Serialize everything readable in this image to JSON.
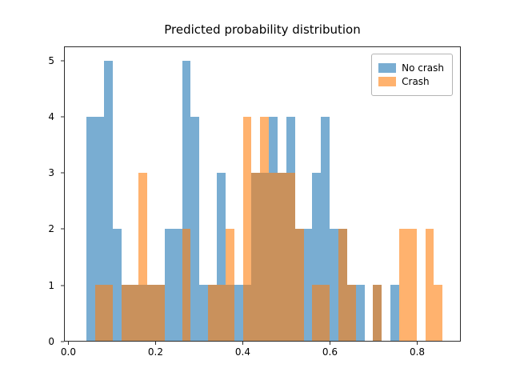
{
  "chart_data": {
    "type": "bar",
    "subtype": "histogram",
    "title": "Predicted probability distribution",
    "xlabel": "",
    "ylabel": "",
    "bin_width": 0.02,
    "xlim": [
      -0.01,
      0.9
    ],
    "ylim": [
      0,
      5.25
    ],
    "grid": false,
    "legend_position": "upper right",
    "x_ticks": [
      {
        "value": 0.0,
        "label": "0.0"
      },
      {
        "value": 0.2,
        "label": "0.2"
      },
      {
        "value": 0.4,
        "label": "0.4"
      },
      {
        "value": 0.6,
        "label": "0.6"
      },
      {
        "value": 0.8,
        "label": "0.8"
      }
    ],
    "y_ticks": [
      {
        "value": 0,
        "label": "0"
      },
      {
        "value": 1,
        "label": "1"
      },
      {
        "value": 2,
        "label": "2"
      },
      {
        "value": 3,
        "label": "3"
      },
      {
        "value": 4,
        "label": "4"
      },
      {
        "value": 5,
        "label": "5"
      }
    ],
    "series": [
      {
        "name": "No crash",
        "color": "#1f77b4",
        "opacity": 0.6,
        "bins": [
          [
            0.04,
            4
          ],
          [
            0.06,
            4
          ],
          [
            0.08,
            5
          ],
          [
            0.1,
            2
          ],
          [
            0.12,
            1
          ],
          [
            0.14,
            1
          ],
          [
            0.16,
            1
          ],
          [
            0.18,
            1
          ],
          [
            0.2,
            1
          ],
          [
            0.22,
            2
          ],
          [
            0.24,
            2
          ],
          [
            0.26,
            5
          ],
          [
            0.28,
            4
          ],
          [
            0.3,
            1
          ],
          [
            0.32,
            1
          ],
          [
            0.34,
            3
          ],
          [
            0.36,
            1
          ],
          [
            0.38,
            1
          ],
          [
            0.4,
            1
          ],
          [
            0.42,
            3
          ],
          [
            0.44,
            3
          ],
          [
            0.46,
            4
          ],
          [
            0.48,
            3
          ],
          [
            0.5,
            4
          ],
          [
            0.52,
            2
          ],
          [
            0.54,
            2
          ],
          [
            0.56,
            3
          ],
          [
            0.58,
            4
          ],
          [
            0.6,
            2
          ],
          [
            0.62,
            2
          ],
          [
            0.64,
            1
          ],
          [
            0.66,
            1
          ],
          [
            0.7,
            1
          ],
          [
            0.74,
            1
          ]
        ]
      },
      {
        "name": "Crash",
        "color": "#ff7f0e",
        "opacity": 0.6,
        "bins": [
          [
            0.06,
            1
          ],
          [
            0.08,
            1
          ],
          [
            0.12,
            1
          ],
          [
            0.14,
            1
          ],
          [
            0.16,
            3
          ],
          [
            0.18,
            1
          ],
          [
            0.2,
            1
          ],
          [
            0.26,
            2
          ],
          [
            0.32,
            1
          ],
          [
            0.34,
            1
          ],
          [
            0.36,
            2
          ],
          [
            0.4,
            4
          ],
          [
            0.42,
            3
          ],
          [
            0.44,
            4
          ],
          [
            0.46,
            3
          ],
          [
            0.48,
            3
          ],
          [
            0.5,
            3
          ],
          [
            0.52,
            2
          ],
          [
            0.56,
            1
          ],
          [
            0.58,
            1
          ],
          [
            0.62,
            2
          ],
          [
            0.64,
            1
          ],
          [
            0.7,
            1
          ],
          [
            0.76,
            2
          ],
          [
            0.78,
            2
          ],
          [
            0.82,
            2
          ],
          [
            0.84,
            1
          ]
        ]
      }
    ],
    "legend": [
      {
        "label": "No crash",
        "color": "#1f77b4"
      },
      {
        "label": "Crash",
        "color": "#ff7f0e"
      }
    ]
  }
}
